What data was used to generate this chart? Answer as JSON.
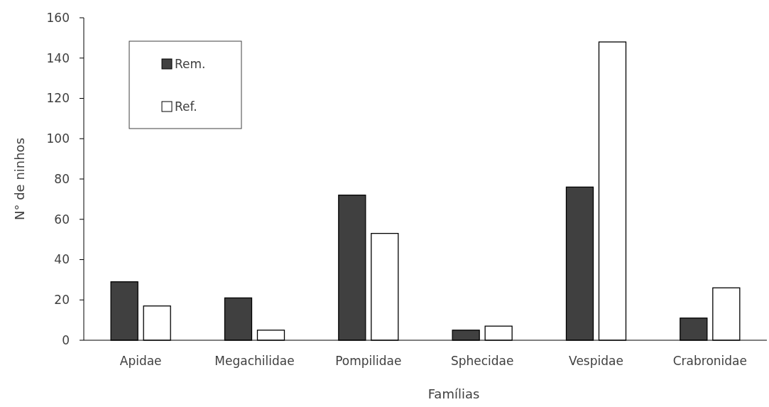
{
  "chart_data": {
    "type": "bar",
    "xlabel": "Famílias",
    "ylabel": "N° de ninhos",
    "categories": [
      "Apidae",
      "Megachilidae",
      "Pompilidae",
      "Sphecidae",
      "Vespidae",
      "Crabronidae"
    ],
    "series": [
      {
        "name": "Rem.",
        "color": "#404040",
        "values": [
          29,
          21,
          72,
          5,
          76,
          11
        ]
      },
      {
        "name": "Ref.",
        "color": "#ffffff",
        "values": [
          17,
          5,
          53,
          7,
          148,
          26
        ]
      }
    ],
    "ylim": [
      0,
      160
    ],
    "yticks": [
      0,
      20,
      40,
      60,
      80,
      100,
      120,
      140,
      160
    ],
    "grid": false,
    "legend": "top left"
  }
}
